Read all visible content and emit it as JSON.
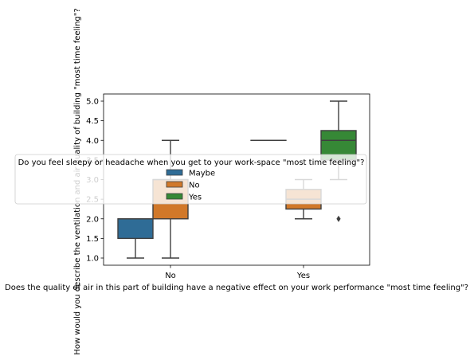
{
  "chart_data": {
    "type": "box",
    "xlabel": "Does the quality of air in this part of building have a negative effect on your work performance \"most time feeling\"?",
    "ylabel": "How would you describe the ventilation and air quality of building  \"most time feeling\"?",
    "categories": [
      "No",
      "Yes"
    ],
    "ylim": [
      0.8,
      5.25
    ],
    "yticks": [
      1.0,
      1.5,
      2.0,
      2.5,
      3.0,
      3.5,
      4.0,
      4.5,
      5.0
    ],
    "ytick_labels": [
      "1.0",
      "1.5",
      "2.0",
      "2.5",
      "3.0",
      "3.5",
      "4.0",
      "4.5",
      "5.0"
    ],
    "grid": false,
    "legend": {
      "title": "Do you feel sleepy or headache when you get to your work-space \"most time feeling\"?",
      "placement": "center",
      "entries": [
        "Maybe",
        "No",
        "Yes"
      ]
    },
    "series": [
      {
        "name": "Maybe",
        "color": "#3274a1",
        "boxes": [
          {
            "category": "No",
            "whisker_low": 1.0,
            "q1": 1.5,
            "median": 2.0,
            "q3": 2.0,
            "whisker_high": 2.0,
            "outliers": []
          },
          {
            "category": "Yes",
            "whisker_low": 4.0,
            "q1": 4.0,
            "median": 4.0,
            "q3": 4.0,
            "whisker_high": 4.0,
            "outliers": []
          }
        ]
      },
      {
        "name": "No",
        "color": "#e1812c",
        "boxes": [
          {
            "category": "No",
            "whisker_low": 1.0,
            "q1": 2.0,
            "median": 3.0,
            "q3": 3.0,
            "whisker_high": 4.0,
            "outliers": []
          },
          {
            "category": "Yes",
            "whisker_low": 2.0,
            "q1": 2.25,
            "median": 2.5,
            "q3": 2.75,
            "whisker_high": 3.0,
            "outliers": []
          }
        ]
      },
      {
        "name": "Yes",
        "color": "#3a923a",
        "boxes": [
          {
            "category": "Yes",
            "whisker_low": 3.0,
            "q1": 3.5,
            "median": 4.0,
            "q3": 4.25,
            "whisker_high": 5.0,
            "outliers": [
              2.0
            ]
          }
        ]
      }
    ]
  }
}
